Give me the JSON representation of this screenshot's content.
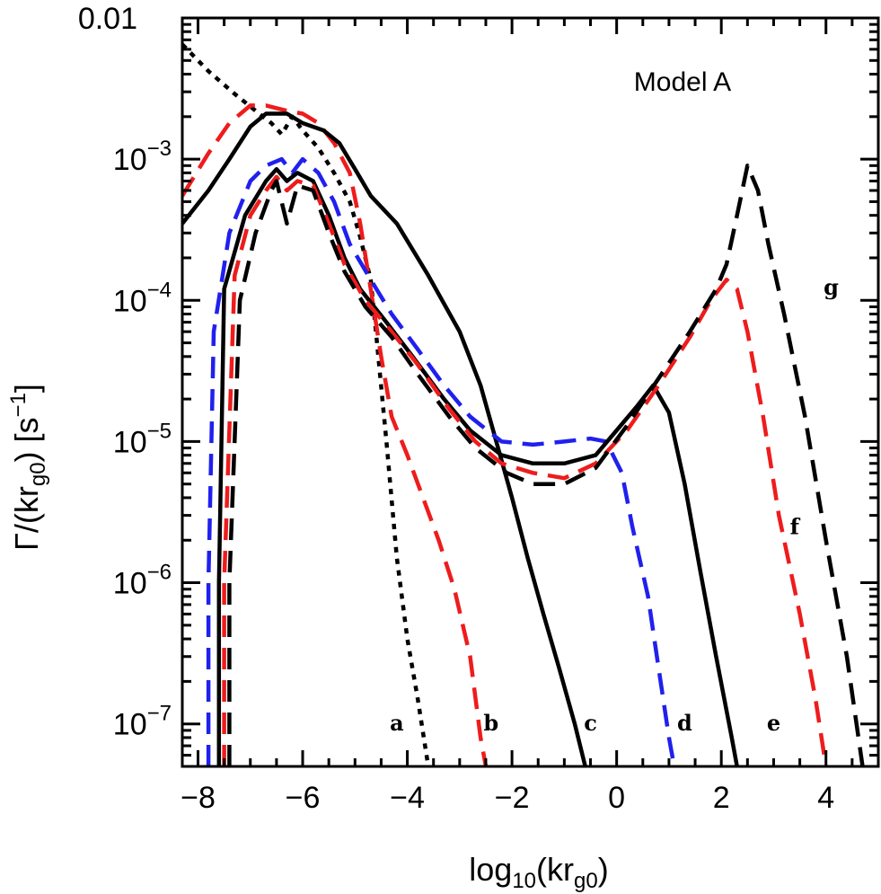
{
  "chart_data": {
    "type": "line",
    "annotation": "Model A",
    "xlabel": "log10(krg0)",
    "ylabel": "Γ/(krg0) [s-1]",
    "xlim": [
      -8.3,
      5.0
    ],
    "ylim": [
      5e-08,
      0.01
    ],
    "y_scale": "log",
    "grid": false,
    "x_ticks": [
      {
        "value": -8,
        "label": "−8"
      },
      {
        "value": -6,
        "label": "−6"
      },
      {
        "value": -4,
        "label": "−4"
      },
      {
        "value": -2,
        "label": "−2"
      },
      {
        "value": 0,
        "label": "0"
      },
      {
        "value": 2,
        "label": "2"
      },
      {
        "value": 4,
        "label": "4"
      }
    ],
    "y_ticks": [
      {
        "value": 1e-07,
        "base": "10",
        "exp": "−7"
      },
      {
        "value": 1e-06,
        "base": "10",
        "exp": "−6"
      },
      {
        "value": 1e-05,
        "base": "10",
        "exp": "−5"
      },
      {
        "value": 0.0001,
        "base": "10",
        "exp": "−4"
      },
      {
        "value": 0.001,
        "base": "10",
        "exp": "−3"
      },
      {
        "value": 0.01,
        "base": "0.01",
        "exp": ""
      }
    ],
    "series": [
      {
        "label": "a",
        "color": "#000000",
        "dash": "dotted",
        "label_at": [
          -4.2,
          9e-08
        ],
        "points": [
          [
            -8.3,
            0.0065
          ],
          [
            -7.8,
            0.0042
          ],
          [
            -7.3,
            0.0029
          ],
          [
            -6.9,
            0.0022
          ],
          [
            -6.6,
            0.0018
          ],
          [
            -6.4,
            0.0015
          ],
          [
            -6.2,
            0.002
          ],
          [
            -6.0,
            0.0016
          ],
          [
            -5.7,
            0.0012
          ],
          [
            -5.4,
            0.0008
          ],
          [
            -5.1,
            0.0005
          ],
          [
            -4.9,
            0.00028
          ],
          [
            -4.7,
            0.00014
          ],
          [
            -4.6,
            6e-05
          ],
          [
            -4.4,
            1e-05
          ],
          [
            -4.2,
            1.5e-06
          ],
          [
            -4.0,
            4e-07
          ],
          [
            -3.8,
            1.5e-07
          ],
          [
            -3.6,
            5e-08
          ]
        ]
      },
      {
        "label": "b",
        "color": "#ee1c1c",
        "dash": "long",
        "label_at": [
          -2.4,
          9e-08
        ],
        "points": [
          [
            -8.3,
            0.00055
          ],
          [
            -7.8,
            0.0011
          ],
          [
            -7.4,
            0.0018
          ],
          [
            -7.0,
            0.0024
          ],
          [
            -6.7,
            0.0024
          ],
          [
            -6.3,
            0.0022
          ],
          [
            -6.0,
            0.0021
          ],
          [
            -5.7,
            0.0018
          ],
          [
            -5.4,
            0.0013
          ],
          [
            -5.1,
            0.0008
          ],
          [
            -4.9,
            0.00035
          ],
          [
            -4.7,
            0.00012
          ],
          [
            -4.5,
            4e-05
          ],
          [
            -4.3,
            1.5e-05
          ],
          [
            -4.0,
            8e-06
          ],
          [
            -3.7,
            4e-06
          ],
          [
            -3.4,
            2e-06
          ],
          [
            -3.1,
            9e-07
          ],
          [
            -2.8,
            3e-07
          ],
          [
            -2.6,
            8e-08
          ],
          [
            -2.5,
            5e-08
          ]
        ]
      },
      {
        "label": "c",
        "color": "#000000",
        "dash": "solid",
        "label_at": [
          -0.5,
          9e-08
        ],
        "points": [
          [
            -8.3,
            0.00035
          ],
          [
            -7.8,
            0.0006
          ],
          [
            -7.4,
            0.001
          ],
          [
            -7.0,
            0.0017
          ],
          [
            -6.7,
            0.0021
          ],
          [
            -6.3,
            0.0021
          ],
          [
            -6.0,
            0.0018
          ],
          [
            -5.6,
            0.0016
          ],
          [
            -5.3,
            0.0013
          ],
          [
            -5.0,
            0.00085
          ],
          [
            -4.7,
            0.00055
          ],
          [
            -4.2,
            0.00035
          ],
          [
            -3.6,
            0.00015
          ],
          [
            -3.0,
            6e-05
          ],
          [
            -2.6,
            2.5e-05
          ],
          [
            -2.3,
            1e-05
          ],
          [
            -2.0,
            4e-06
          ],
          [
            -1.7,
            1.5e-06
          ],
          [
            -1.4,
            6e-07
          ],
          [
            -1.1,
            2.5e-07
          ],
          [
            -0.8,
            1e-07
          ],
          [
            -0.6,
            5e-08
          ]
        ]
      },
      {
        "label": "d",
        "color": "#2020ee",
        "dash": "long",
        "label_at": [
          1.3,
          9e-08
        ],
        "points": [
          [
            -7.8,
            5e-08
          ],
          [
            -7.8,
            1e-06
          ],
          [
            -7.7,
            6e-05
          ],
          [
            -7.4,
            0.0003
          ],
          [
            -7.0,
            0.0007
          ],
          [
            -6.7,
            0.0009
          ],
          [
            -6.4,
            0.001
          ],
          [
            -6.2,
            0.0008
          ],
          [
            -6.0,
            0.001
          ],
          [
            -5.7,
            0.0008
          ],
          [
            -5.4,
            0.0005
          ],
          [
            -5.1,
            0.00025
          ],
          [
            -4.7,
            0.00014
          ],
          [
            -4.3,
            8e-05
          ],
          [
            -3.8,
            4.5e-05
          ],
          [
            -3.3,
            2.5e-05
          ],
          [
            -2.8,
            1.5e-05
          ],
          [
            -2.2,
            1e-05
          ],
          [
            -1.6,
            9.5e-06
          ],
          [
            -1.0,
            1e-05
          ],
          [
            -0.5,
            1.05e-05
          ],
          [
            -0.2,
            1e-05
          ],
          [
            0.1,
            6e-06
          ],
          [
            0.3,
            2.5e-06
          ],
          [
            0.6,
            8e-07
          ],
          [
            0.8,
            2.5e-07
          ],
          [
            1.0,
            8e-08
          ],
          [
            1.1,
            5e-08
          ]
        ]
      },
      {
        "label": "e",
        "color": "#000000",
        "dash": "solid",
        "label_at": [
          3.0,
          9e-08
        ],
        "points": [
          [
            -7.6,
            5e-08
          ],
          [
            -7.6,
            1e-06
          ],
          [
            -7.5,
            0.00012
          ],
          [
            -7.1,
            0.0004
          ],
          [
            -6.7,
            0.0007
          ],
          [
            -6.5,
            0.00085
          ],
          [
            -6.3,
            0.0007
          ],
          [
            -6.1,
            0.0008
          ],
          [
            -5.8,
            0.0007
          ],
          [
            -5.5,
            0.0004
          ],
          [
            -5.2,
            0.0002
          ],
          [
            -4.9,
            0.00012
          ],
          [
            -4.4,
            7e-05
          ],
          [
            -3.9,
            4e-05
          ],
          [
            -3.3,
            2e-05
          ],
          [
            -2.8,
            1.2e-05
          ],
          [
            -2.2,
            8e-06
          ],
          [
            -1.6,
            7e-06
          ],
          [
            -1.0,
            7e-06
          ],
          [
            -0.4,
            8e-06
          ],
          [
            0.0,
            1.2e-05
          ],
          [
            0.4,
            1.8e-05
          ],
          [
            0.7,
            2.5e-05
          ],
          [
            1.0,
            1.6e-05
          ],
          [
            1.3,
            5e-06
          ],
          [
            1.6,
            1.2e-06
          ],
          [
            1.9,
            3e-07
          ],
          [
            2.2,
            8e-08
          ],
          [
            2.3,
            5e-08
          ]
        ]
      },
      {
        "label": "f",
        "color": "#ee1c1c",
        "dash": "long",
        "label_at": [
          3.4,
          2.2e-06
        ],
        "points": [
          [
            -7.5,
            5e-08
          ],
          [
            -7.5,
            1e-06
          ],
          [
            -7.3,
            0.00015
          ],
          [
            -7.0,
            0.0004
          ],
          [
            -6.7,
            0.0006
          ],
          [
            -6.5,
            0.00075
          ],
          [
            -6.3,
            0.0006
          ],
          [
            -6.1,
            0.0007
          ],
          [
            -5.8,
            0.00065
          ],
          [
            -5.5,
            0.00035
          ],
          [
            -5.2,
            0.00018
          ],
          [
            -4.8,
            0.0001
          ],
          [
            -4.3,
            6e-05
          ],
          [
            -3.8,
            3.5e-05
          ],
          [
            -3.2,
            1.7e-05
          ],
          [
            -2.7,
            1e-05
          ],
          [
            -2.2,
            7e-06
          ],
          [
            -1.6,
            6e-06
          ],
          [
            -1.0,
            5.5e-06
          ],
          [
            -0.4,
            7e-06
          ],
          [
            0.2,
            1.2e-05
          ],
          [
            0.8,
            2.5e-05
          ],
          [
            1.4,
            5.5e-05
          ],
          [
            1.8,
            0.0001
          ],
          [
            2.1,
            0.00014
          ],
          [
            2.3,
            0.00012
          ],
          [
            2.5,
            6e-05
          ],
          [
            2.8,
            1.5e-05
          ],
          [
            3.1,
            3e-06
          ],
          [
            3.5,
            6e-07
          ],
          [
            3.8,
            1.5e-07
          ],
          [
            4.0,
            5e-08
          ]
        ]
      },
      {
        "label": "g",
        "color": "#000000",
        "dash": "long",
        "label_at": [
          4.1,
          0.00011
        ],
        "points": [
          [
            -7.4,
            5e-08
          ],
          [
            -7.4,
            1e-06
          ],
          [
            -7.2,
            0.0001
          ],
          [
            -6.9,
            0.0003
          ],
          [
            -6.6,
            0.0006
          ],
          [
            -6.5,
            0.0007
          ],
          [
            -6.3,
            0.00035
          ],
          [
            -6.1,
            0.00065
          ],
          [
            -5.8,
            0.0006
          ],
          [
            -5.5,
            0.0003
          ],
          [
            -5.2,
            0.00016
          ],
          [
            -4.8,
            9e-05
          ],
          [
            -4.3,
            5.5e-05
          ],
          [
            -3.8,
            3e-05
          ],
          [
            -3.2,
            1.5e-05
          ],
          [
            -2.7,
            9e-06
          ],
          [
            -2.1,
            6e-06
          ],
          [
            -1.6,
            5e-06
          ],
          [
            -1.0,
            5e-06
          ],
          [
            -0.4,
            6.5e-06
          ],
          [
            0.2,
            1.3e-05
          ],
          [
            0.8,
            2.8e-05
          ],
          [
            1.4,
            6e-05
          ],
          [
            1.9,
            0.00012
          ],
          [
            2.1,
            0.00018
          ],
          [
            2.3,
            0.0004
          ],
          [
            2.5,
            0.0009
          ],
          [
            2.7,
            0.0006
          ],
          [
            2.9,
            0.00025
          ],
          [
            3.2,
            8e-05
          ],
          [
            3.6,
            1.5e-05
          ],
          [
            4.0,
            2e-06
          ],
          [
            4.4,
            3e-07
          ],
          [
            4.7,
            5e-08
          ]
        ]
      }
    ]
  }
}
